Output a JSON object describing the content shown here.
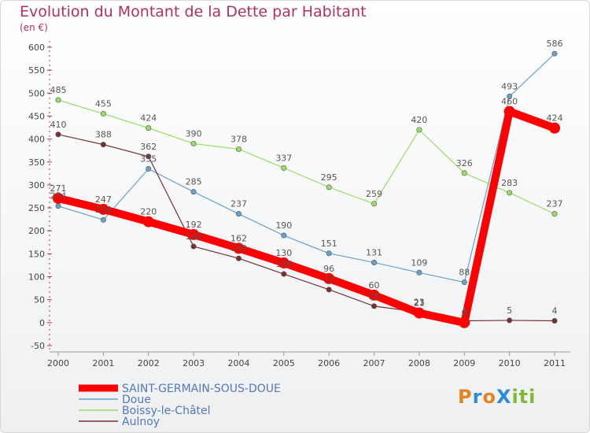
{
  "header": {
    "title": "Evolution du Montant de la Dette par Habitant",
    "unit": "(en €)"
  },
  "logo": {
    "text": "ProXiti"
  },
  "chart_data": {
    "type": "line",
    "title": "Evolution du Montant de la Dette par Habitant",
    "subtitle": "(en €)",
    "x": [
      "2000",
      "2001",
      "2002",
      "2003",
      "2004",
      "2005",
      "2006",
      "2007",
      "2008",
      "2009",
      "2010",
      "2011"
    ],
    "ylim": [
      -50,
      600
    ],
    "yticks": [
      -50,
      0,
      50,
      100,
      150,
      200,
      250,
      300,
      350,
      400,
      450,
      500,
      550,
      600
    ],
    "grid": false,
    "legend_position": "bottom-left",
    "series": [
      {
        "name": "SAINT-GERMAIN-SOUS-DOUE",
        "color": "#ff0000",
        "width": 10,
        "values": [
          271,
          247,
          220,
          192,
          162,
          130,
          96,
          60,
          21,
          0,
          460,
          424
        ]
      },
      {
        "name": "Doue",
        "color": "#6aa0cc",
        "width": 1.2,
        "values": [
          254,
          224,
          335,
          285,
          237,
          190,
          151,
          131,
          109,
          88,
          493,
          586
        ]
      },
      {
        "name": "Boissy-le-Châtel",
        "color": "#99dd66",
        "width": 1.2,
        "values": [
          485,
          455,
          424,
          390,
          378,
          337,
          295,
          259,
          420,
          326,
          283,
          237
        ]
      },
      {
        "name": "Aulnoy",
        "color": "#7a3030",
        "width": 1.2,
        "values": [
          410,
          388,
          362,
          166,
          140,
          106,
          72,
          36,
          23,
          4,
          5,
          4
        ]
      }
    ]
  }
}
